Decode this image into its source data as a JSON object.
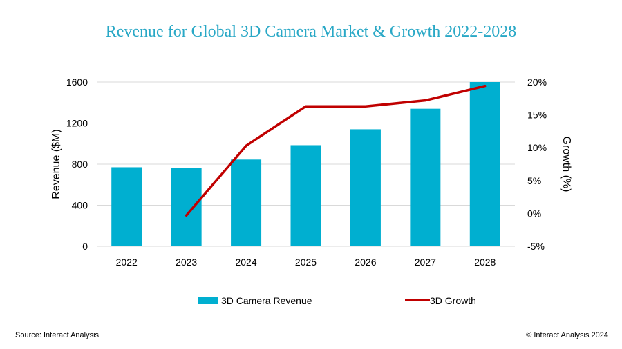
{
  "source": "Source: Interact Analysis",
  "copyright": "© Interact Analysis 2024",
  "colors": {
    "title": "#29a8c6",
    "bar": "#00afd0",
    "line": "#c00000",
    "grid": "#d9d9d9"
  },
  "chart_data": {
    "type": "bar",
    "title": "Revenue for Global 3D Camera Market & Growth 2022-2028",
    "xlabel": "",
    "ylabel": "Revenue ($M)",
    "y2label": "Growth (%)",
    "categories": [
      "2022",
      "2023",
      "2024",
      "2025",
      "2026",
      "2027",
      "2028"
    ],
    "ylim": [
      0,
      1600
    ],
    "yticks": [
      0,
      400,
      800,
      1200,
      1600
    ],
    "y2lim": [
      -5,
      20
    ],
    "y2ticks": [
      "-5%",
      "0%",
      "5%",
      "10%",
      "15%",
      "20%"
    ],
    "y2tick_values": [
      -5,
      0,
      5,
      10,
      15,
      20
    ],
    "grid": true,
    "legend_position": "bottom",
    "series": [
      {
        "name": "3D Camera Revenue",
        "type": "bar",
        "axis": "left",
        "values": [
          770,
          765,
          845,
          985,
          1140,
          1340,
          1600
        ]
      },
      {
        "name": "3D Growth",
        "type": "line",
        "axis": "right",
        "values": [
          null,
          -0.3,
          10.3,
          16.3,
          16.3,
          17.2,
          19.4
        ]
      }
    ]
  }
}
